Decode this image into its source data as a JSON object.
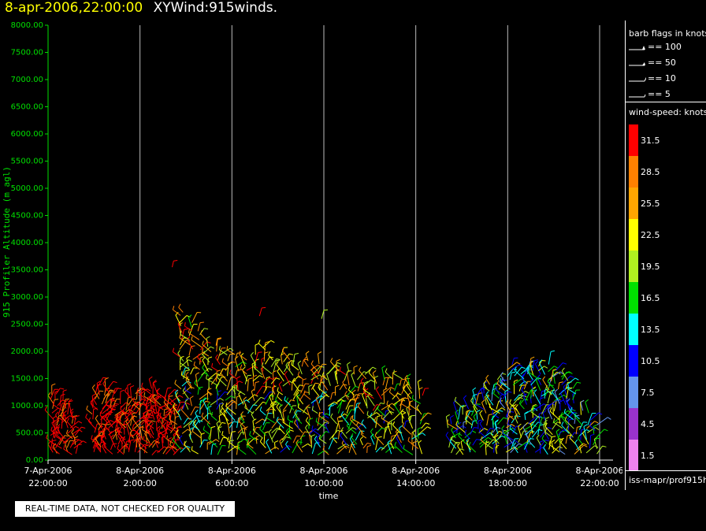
{
  "header": {
    "datetime": "8-apr-2006,22:00:00",
    "product": "XYWind:915winds."
  },
  "notice": "REAL-TIME DATA, NOT CHECKED FOR QUALITY",
  "legend": {
    "barb_title": "barb flags in knots",
    "barb_flags": [
      {
        "label": "== 100",
        "value": 100
      },
      {
        "label": "== 50",
        "value": 50
      },
      {
        "label": "== 10",
        "value": 10
      },
      {
        "label": "== 5",
        "value": 5
      }
    ],
    "speed_title": "wind-speed: knots",
    "speed_scale": [
      {
        "label": "31.5",
        "color": "#ff0000"
      },
      {
        "label": "28.5",
        "color": "#ff8000"
      },
      {
        "label": "25.5",
        "color": "#ffa500"
      },
      {
        "label": "22.5",
        "color": "#ffff00"
      },
      {
        "label": "19.5",
        "color": "#b0f020"
      },
      {
        "label": "16.5",
        "color": "#00e000"
      },
      {
        "label": "13.5",
        "color": "#00ffff"
      },
      {
        "label": "10.5",
        "color": "#0000ff"
      },
      {
        "label": "7.5",
        "color": "#6495ed"
      },
      {
        "label": "4.5",
        "color": "#9932cc"
      },
      {
        "label": "1.5",
        "color": "#ee82ee"
      }
    ],
    "source": "iss-mapr/prof915h"
  },
  "chart_data": {
    "type": "scatter",
    "title": "8-apr-2006,22:00:00  XYWind:915winds.",
    "xlabel": "time",
    "ylabel": "915 Profiler Altitude (m agl)",
    "ylim": [
      0,
      8000
    ],
    "y_ticks": [
      "0.00",
      "500.00",
      "1000.00",
      "1500.00",
      "2000.00",
      "2500.00",
      "3000.00",
      "3500.00",
      "4000.00",
      "4500.00",
      "5000.00",
      "5500.00",
      "6000.00",
      "6500.00",
      "7000.00",
      "7500.00",
      "8000.00"
    ],
    "xlim_hours": [
      0,
      24
    ],
    "x_ticks": [
      {
        "hour": 0,
        "date": "7-Apr-2006",
        "time": "22:00:00"
      },
      {
        "hour": 4,
        "date": "8-Apr-2006",
        "time": "2:00:00"
      },
      {
        "hour": 8,
        "date": "8-Apr-2006",
        "time": "6:00:00"
      },
      {
        "hour": 12,
        "date": "8-Apr-2006",
        "time": "10:00:00"
      },
      {
        "hour": 16,
        "date": "8-Apr-2006",
        "time": "14:00:00"
      },
      {
        "hour": 20,
        "date": "8-Apr-2006",
        "time": "18:00:00"
      },
      {
        "hour": 24,
        "date": "8-Apr-2006",
        "time": "22:00:00"
      }
    ],
    "grid": "vertical",
    "series": [
      {
        "hours": [
          0.2,
          0.4,
          0.6,
          0.8,
          1.0,
          1.2
        ],
        "alt_top": [
          1200,
          1200,
          1150,
          1000,
          900,
          800
        ],
        "alt_bottom": 120,
        "speed": 31.5
      },
      {
        "hours": [
          2.0,
          2.2,
          2.4,
          2.6,
          2.8,
          3.0
        ],
        "alt_top": [
          1200,
          1300,
          1350,
          1300,
          1200,
          1000
        ],
        "alt_bottom": 120,
        "speed": 31.5
      },
      {
        "hours": [
          3.2,
          3.4,
          3.6,
          3.8,
          4.0,
          4.2,
          4.4,
          4.6,
          4.8,
          5.0,
          5.2,
          5.4,
          5.6
        ],
        "alt_top": [
          1100,
          1150,
          1200,
          1250,
          1200,
          1150,
          1250,
          1300,
          1200,
          1150,
          1200,
          1100,
          1050
        ],
        "alt_bottom": 120,
        "speed": 31.5
      },
      {
        "hours": [
          5.8,
          6.2,
          6.6,
          7.0,
          7.4,
          7.8,
          8.2,
          8.6,
          9.0,
          9.4,
          9.8,
          10.2,
          10.6,
          11.0,
          11.4,
          11.8,
          12.2,
          12.6,
          13.0,
          13.4,
          13.8,
          14.2,
          14.6,
          15.0,
          15.4,
          15.8,
          16.2
        ],
        "alt_top": [
          2800,
          2600,
          2400,
          2200,
          2100,
          2000,
          2000,
          1900,
          2000,
          2100,
          1900,
          2000,
          1900,
          1800,
          1900,
          1800,
          1700,
          1700,
          1700,
          1600,
          1600,
          1500,
          1500,
          1500,
          1500,
          1400,
          1300
        ],
        "alt_bottom": 120,
        "speed": 22.5
      },
      {
        "hours": [
          17.5,
          17.8,
          18.1,
          18.4,
          18.7,
          19.0,
          19.3,
          19.6,
          19.9,
          20.2,
          20.5,
          20.8,
          21.1,
          21.4,
          21.7,
          22.0,
          22.3,
          22.6,
          22.9,
          23.2,
          23.5,
          23.8
        ],
        "alt_top": [
          700,
          900,
          1000,
          1100,
          1200,
          1300,
          1400,
          1500,
          1700,
          1800,
          1600,
          1700,
          1800,
          1800,
          1750,
          1700,
          1600,
          1500,
          1300,
          1000,
          900,
          700
        ],
        "alt_bottom": 120,
        "speed": 13.5
      }
    ],
    "isolated_barbs": [
      {
        "hour": 5.4,
        "alt": 3550,
        "speed": 31.5
      },
      {
        "hour": 9.2,
        "alt": 2650,
        "speed": 31.5
      },
      {
        "hour": 11.9,
        "alt": 2600,
        "speed": 19.5
      }
    ]
  }
}
